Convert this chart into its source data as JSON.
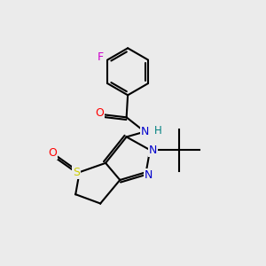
{
  "bg_color": "#ebebeb",
  "atom_colors": {
    "C": "#000000",
    "N": "#0000cc",
    "O": "#ff0000",
    "S": "#cccc00",
    "F": "#cc00cc",
    "H": "#008080"
  },
  "bond_color": "#000000",
  "bond_width": 1.5
}
